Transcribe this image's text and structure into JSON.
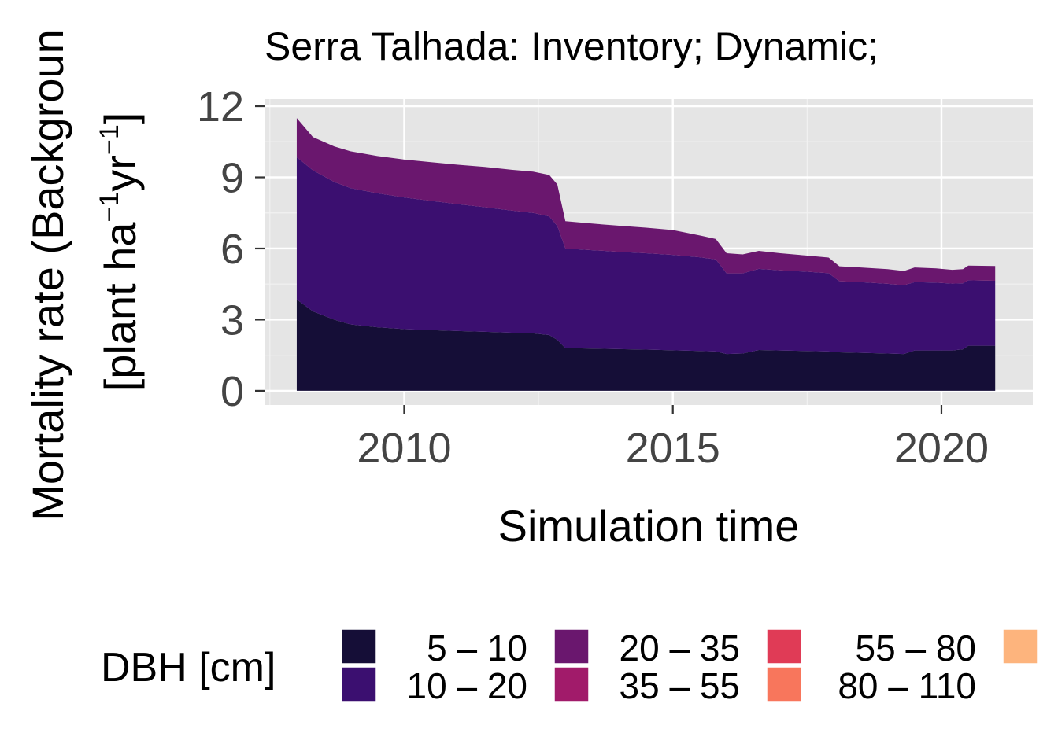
{
  "chart_data": {
    "type": "area",
    "stacked": true,
    "title": "Serra Talhada: Inventory; Dynamic;",
    "xlabel": "Simulation time",
    "ylabel_line1": "Mortality rate (Backgroun",
    "ylabel_line2_prefix": "[plant ha",
    "ylabel_line2_mid": "yr",
    "ylabel_line2_suffix": "]",
    "ylabel_exponent": "−1",
    "xlim": [
      2007.4,
      2021.7
    ],
    "ylim": [
      -0.6,
      12.3
    ],
    "x_ticks": [
      2010,
      2015,
      2020
    ],
    "x_minor_ticks": [
      2007.5,
      2012.5,
      2017.5
    ],
    "y_ticks": [
      0,
      3,
      6,
      9,
      12
    ],
    "grid": true,
    "legend": {
      "title": "DBH [cm]",
      "position": "bottom",
      "entries": [
        {
          "label": "5 – 10",
          "color": "#150e37"
        },
        {
          "label": "10 – 20",
          "color": "#3b0f70"
        },
        {
          "label": "20 – 35",
          "color": "#6a176e"
        },
        {
          "label": "35 – 55",
          "color": "#a11b6a"
        },
        {
          "label": "55 – 80",
          "color": "#e03b56"
        },
        {
          "label": "80 – 110",
          "color": "#f8765c"
        },
        {
          "label": "",
          "color": "#fdb47d"
        }
      ]
    },
    "x": [
      2008.0,
      2008.3,
      2008.7,
      2009.0,
      2009.5,
      2010.0,
      2010.5,
      2011.0,
      2011.5,
      2012.0,
      2012.4,
      2012.7,
      2012.85,
      2013.0,
      2013.5,
      2014.0,
      2014.5,
      2015.0,
      2015.5,
      2015.8,
      2016.0,
      2016.3,
      2016.6,
      2017.0,
      2017.5,
      2017.9,
      2018.1,
      2018.5,
      2019.0,
      2019.3,
      2019.5,
      2019.9,
      2020.2,
      2020.4,
      2020.5,
      2021.0
    ],
    "series": [
      {
        "name": "5 – 10",
        "values": [
          3.85,
          3.35,
          3.0,
          2.8,
          2.68,
          2.6,
          2.56,
          2.52,
          2.49,
          2.45,
          2.42,
          2.35,
          2.15,
          1.8,
          1.78,
          1.76,
          1.74,
          1.71,
          1.68,
          1.66,
          1.55,
          1.57,
          1.72,
          1.7,
          1.68,
          1.66,
          1.62,
          1.6,
          1.57,
          1.55,
          1.7,
          1.7,
          1.7,
          1.75,
          1.9,
          1.9
        ]
      },
      {
        "name": "10 – 20",
        "values": [
          6.0,
          5.95,
          5.8,
          5.75,
          5.65,
          5.55,
          5.45,
          5.35,
          5.25,
          5.15,
          5.08,
          5.0,
          4.8,
          4.2,
          4.15,
          4.1,
          4.06,
          4.02,
          3.95,
          3.88,
          3.4,
          3.38,
          3.42,
          3.38,
          3.34,
          3.3,
          3.0,
          2.98,
          2.94,
          2.9,
          2.88,
          2.86,
          2.82,
          2.78,
          2.76,
          2.74
        ]
      },
      {
        "name": "20 – 35",
        "values": [
          1.65,
          1.4,
          1.5,
          1.55,
          1.57,
          1.6,
          1.63,
          1.66,
          1.7,
          1.72,
          1.74,
          1.75,
          1.75,
          1.15,
          1.12,
          1.1,
          1.08,
          1.05,
          0.92,
          0.86,
          0.85,
          0.8,
          0.76,
          0.72,
          0.68,
          0.66,
          0.63,
          0.62,
          0.62,
          0.6,
          0.62,
          0.6,
          0.58,
          0.6,
          0.62,
          0.62
        ]
      },
      {
        "name": "35 – 55",
        "values": [
          0,
          0,
          0,
          0,
          0,
          0,
          0,
          0,
          0,
          0,
          0,
          0,
          0,
          0,
          0,
          0,
          0,
          0,
          0,
          0,
          0,
          0,
          0,
          0,
          0,
          0,
          0,
          0,
          0,
          0,
          0,
          0,
          0,
          0,
          0,
          0
        ]
      },
      {
        "name": "55 – 80",
        "values": [
          0,
          0,
          0,
          0,
          0,
          0,
          0,
          0,
          0,
          0,
          0,
          0,
          0,
          0,
          0,
          0,
          0,
          0,
          0,
          0,
          0,
          0,
          0,
          0,
          0,
          0,
          0,
          0,
          0,
          0,
          0,
          0,
          0,
          0,
          0,
          0
        ]
      },
      {
        "name": "80 – 110",
        "values": [
          0,
          0,
          0,
          0,
          0,
          0,
          0,
          0,
          0,
          0,
          0,
          0,
          0,
          0,
          0,
          0,
          0,
          0,
          0,
          0,
          0,
          0,
          0,
          0,
          0,
          0,
          0,
          0,
          0,
          0,
          0,
          0,
          0,
          0,
          0,
          0
        ]
      }
    ]
  }
}
